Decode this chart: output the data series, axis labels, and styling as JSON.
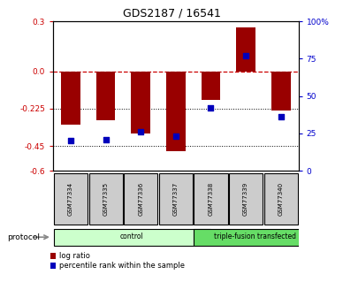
{
  "title": "GDS2187 / 16541",
  "samples": [
    "GSM77334",
    "GSM77335",
    "GSM77336",
    "GSM77337",
    "GSM77338",
    "GSM77339",
    "GSM77340"
  ],
  "log_ratio": [
    -0.32,
    -0.295,
    -0.375,
    -0.48,
    -0.175,
    0.265,
    -0.235
  ],
  "percentile_rank": [
    20,
    21,
    26,
    23,
    42,
    77,
    36
  ],
  "ylim_left": [
    -0.6,
    0.3
  ],
  "ylim_right": [
    0,
    100
  ],
  "yticks_left": [
    0.3,
    0.0,
    -0.225,
    -0.45,
    -0.6
  ],
  "yticks_right": [
    100,
    75,
    50,
    25,
    0
  ],
  "hlines": [
    -0.225,
    -0.45
  ],
  "protocol_groups": [
    {
      "label": "control",
      "start": 0,
      "end": 4,
      "color": "#ccffcc"
    },
    {
      "label": "triple-fusion transfected",
      "start": 4,
      "end": 7,
      "color": "#66dd66"
    }
  ],
  "bar_color": "#990000",
  "dot_color": "#0000bb",
  "bar_width": 0.55,
  "background_color": "#ffffff",
  "protocol_label": "protocol",
  "legend_entries": [
    "log ratio",
    "percentile rank within the sample"
  ],
  "sample_box_color": "#cccccc"
}
